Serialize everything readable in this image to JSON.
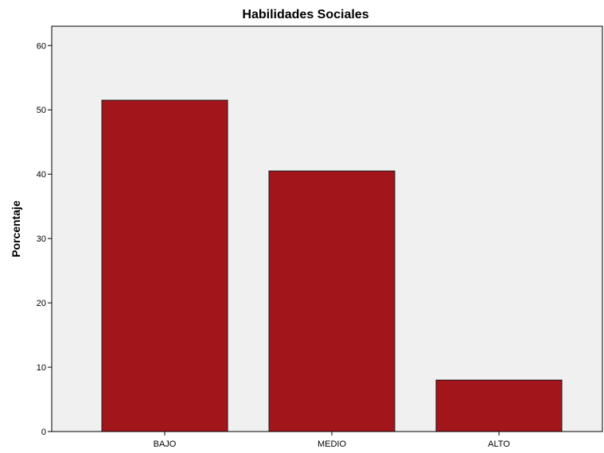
{
  "chart_data": {
    "type": "bar",
    "title": "Habilidades Sociales",
    "xlabel": "",
    "ylabel": "Porcentaje",
    "categories": [
      "BAJO",
      "MEDIO",
      "ALTO"
    ],
    "values": [
      51.5,
      40.5,
      8.0
    ],
    "ylim": [
      0,
      63
    ],
    "yticks": [
      0,
      10,
      20,
      30,
      40,
      50,
      60
    ],
    "grid": false,
    "legend": "none",
    "colors": {
      "bar_fill": "#a2161b",
      "bar_stroke": "#1a1a1a",
      "plot_background": "#f0f0f0",
      "axis": "#000000"
    }
  }
}
